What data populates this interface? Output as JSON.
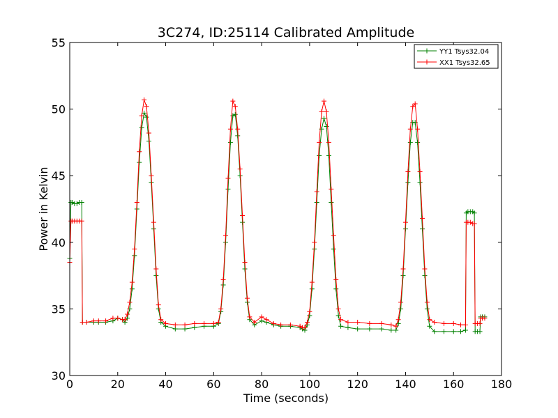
{
  "chart_data": {
    "type": "line",
    "title": "3C274, ID:25114 Calibrated Amplitude",
    "xlabel": "Time (seconds)",
    "ylabel": "Power in Kelvin",
    "xlim": [
      0,
      180
    ],
    "ylim": [
      30,
      55
    ],
    "xticks": [
      "0",
      "20",
      "40",
      "60",
      "80",
      "100",
      "120",
      "140",
      "160",
      "180"
    ],
    "yticks": [
      "30",
      "35",
      "40",
      "45",
      "50",
      "55"
    ],
    "grid": false,
    "legend_position": "top-right",
    "series": [
      {
        "name": "YY1 Tsys32.04",
        "color": "#008000",
        "marker": "plus",
        "points": [
          [
            0.0,
            38.8
          ],
          [
            0.5,
            43.0
          ],
          [
            1,
            43.0
          ],
          [
            2,
            42.9
          ],
          [
            3,
            42.9
          ],
          [
            4,
            43.0
          ],
          [
            5,
            43.0
          ],
          [
            5.3,
            34.0
          ],
          [
            7,
            34.0
          ],
          [
            10,
            34.0
          ],
          [
            12,
            34.0
          ],
          [
            15,
            34.0
          ],
          [
            18,
            34.1
          ],
          [
            20,
            34.3
          ],
          [
            22,
            34.2
          ],
          [
            23,
            34.0
          ],
          [
            24,
            34.3
          ],
          [
            25,
            35.0
          ],
          [
            26,
            36.5
          ],
          [
            27,
            39.0
          ],
          [
            28,
            42.5
          ],
          [
            29,
            46.0
          ],
          [
            30,
            48.6
          ],
          [
            31,
            49.7
          ],
          [
            32,
            49.4
          ],
          [
            33,
            47.6
          ],
          [
            34,
            44.5
          ],
          [
            35,
            41.0
          ],
          [
            36,
            37.5
          ],
          [
            37,
            35.0
          ],
          [
            38,
            34.0
          ],
          [
            40,
            33.7
          ],
          [
            44,
            33.5
          ],
          [
            48,
            33.5
          ],
          [
            52,
            33.6
          ],
          [
            56,
            33.7
          ],
          [
            60,
            33.7
          ],
          [
            62,
            33.9
          ],
          [
            63,
            34.8
          ],
          [
            64,
            36.8
          ],
          [
            65,
            40.0
          ],
          [
            66,
            44.0
          ],
          [
            67,
            47.5
          ],
          [
            68,
            49.5
          ],
          [
            69,
            49.6
          ],
          [
            70,
            48.0
          ],
          [
            71,
            45.0
          ],
          [
            72,
            41.5
          ],
          [
            73,
            38.0
          ],
          [
            74,
            35.5
          ],
          [
            75,
            34.2
          ],
          [
            77,
            33.8
          ],
          [
            80,
            34.1
          ],
          [
            82,
            34.0
          ],
          [
            85,
            33.8
          ],
          [
            88,
            33.7
          ],
          [
            92,
            33.7
          ],
          [
            96,
            33.6
          ],
          [
            97,
            33.5
          ],
          [
            98,
            33.4
          ],
          [
            99,
            33.8
          ],
          [
            100,
            34.5
          ],
          [
            101,
            36.5
          ],
          [
            102,
            39.5
          ],
          [
            103,
            43.0
          ],
          [
            104,
            46.5
          ],
          [
            105,
            48.5
          ],
          [
            106,
            49.3
          ],
          [
            107,
            48.7
          ],
          [
            108,
            46.5
          ],
          [
            109,
            43.0
          ],
          [
            110,
            39.5
          ],
          [
            111,
            36.5
          ],
          [
            112,
            34.5
          ],
          [
            113,
            33.7
          ],
          [
            116,
            33.6
          ],
          [
            120,
            33.5
          ],
          [
            125,
            33.5
          ],
          [
            130,
            33.5
          ],
          [
            134,
            33.4
          ],
          [
            136,
            33.4
          ],
          [
            137,
            33.9
          ],
          [
            138,
            35.0
          ],
          [
            139,
            37.5
          ],
          [
            140,
            41.0
          ],
          [
            141,
            44.5
          ],
          [
            142,
            47.5
          ],
          [
            143,
            49.0
          ],
          [
            144,
            49.0
          ],
          [
            145,
            47.5
          ],
          [
            146,
            44.5
          ],
          [
            147,
            41.0
          ],
          [
            148,
            37.5
          ],
          [
            149,
            35.0
          ],
          [
            150,
            33.7
          ],
          [
            152,
            33.3
          ],
          [
            156,
            33.3
          ],
          [
            160,
            33.3
          ],
          [
            163,
            33.3
          ],
          [
            165,
            33.4
          ],
          [
            165.3,
            42.2
          ],
          [
            166,
            42.3
          ],
          [
            167,
            42.3
          ],
          [
            168,
            42.3
          ],
          [
            168.7,
            42.2
          ],
          [
            169,
            33.3
          ],
          [
            170,
            33.3
          ],
          [
            171,
            33.3
          ],
          [
            171.3,
            34.4
          ],
          [
            172,
            34.4
          ],
          [
            173,
            34.4
          ]
        ]
      },
      {
        "name": "XX1 Tsys32.65",
        "color": "#ff0000",
        "marker": "plus",
        "points": [
          [
            0.0,
            38.5
          ],
          [
            0.5,
            41.6
          ],
          [
            1,
            41.6
          ],
          [
            2,
            41.6
          ],
          [
            3,
            41.6
          ],
          [
            4,
            41.6
          ],
          [
            5,
            41.6
          ],
          [
            5.3,
            34.0
          ],
          [
            7,
            34.0
          ],
          [
            10,
            34.1
          ],
          [
            12,
            34.1
          ],
          [
            15,
            34.1
          ],
          [
            18,
            34.3
          ],
          [
            20,
            34.3
          ],
          [
            22,
            34.2
          ],
          [
            23,
            34.2
          ],
          [
            24,
            34.6
          ],
          [
            25,
            35.5
          ],
          [
            26,
            37.0
          ],
          [
            27,
            39.5
          ],
          [
            28,
            43.0
          ],
          [
            29,
            46.8
          ],
          [
            30,
            49.5
          ],
          [
            31,
            50.7
          ],
          [
            32,
            50.2
          ],
          [
            33,
            48.2
          ],
          [
            34,
            45.0
          ],
          [
            35,
            41.5
          ],
          [
            36,
            38.0
          ],
          [
            37,
            35.3
          ],
          [
            38,
            34.2
          ],
          [
            40,
            33.9
          ],
          [
            44,
            33.8
          ],
          [
            48,
            33.8
          ],
          [
            52,
            33.9
          ],
          [
            56,
            33.9
          ],
          [
            60,
            33.9
          ],
          [
            62,
            34.0
          ],
          [
            63,
            35.0
          ],
          [
            64,
            37.2
          ],
          [
            65,
            40.5
          ],
          [
            66,
            44.8
          ],
          [
            67,
            48.5
          ],
          [
            68,
            50.6
          ],
          [
            69,
            50.2
          ],
          [
            70,
            48.5
          ],
          [
            71,
            45.5
          ],
          [
            72,
            42.0
          ],
          [
            73,
            38.5
          ],
          [
            74,
            35.8
          ],
          [
            75,
            34.4
          ],
          [
            77,
            34.0
          ],
          [
            80,
            34.4
          ],
          [
            82,
            34.2
          ],
          [
            85,
            33.9
          ],
          [
            88,
            33.8
          ],
          [
            92,
            33.8
          ],
          [
            96,
            33.7
          ],
          [
            97,
            33.6
          ],
          [
            98,
            33.6
          ],
          [
            99,
            34.0
          ],
          [
            100,
            34.8
          ],
          [
            101,
            37.0
          ],
          [
            102,
            40.0
          ],
          [
            103,
            43.8
          ],
          [
            104,
            47.5
          ],
          [
            105,
            49.8
          ],
          [
            106,
            50.6
          ],
          [
            107,
            49.8
          ],
          [
            108,
            47.5
          ],
          [
            109,
            44.0
          ],
          [
            110,
            40.5
          ],
          [
            111,
            37.2
          ],
          [
            112,
            35.0
          ],
          [
            113,
            34.2
          ],
          [
            116,
            34.0
          ],
          [
            120,
            34.0
          ],
          [
            125,
            33.9
          ],
          [
            130,
            33.9
          ],
          [
            134,
            33.8
          ],
          [
            136,
            33.7
          ],
          [
            137,
            34.2
          ],
          [
            138,
            35.5
          ],
          [
            139,
            38.0
          ],
          [
            140,
            41.5
          ],
          [
            141,
            45.3
          ],
          [
            142,
            48.5
          ],
          [
            143,
            50.2
          ],
          [
            144,
            50.4
          ],
          [
            145,
            48.5
          ],
          [
            146,
            45.3
          ],
          [
            147,
            41.8
          ],
          [
            148,
            38.0
          ],
          [
            149,
            35.5
          ],
          [
            150,
            34.2
          ],
          [
            152,
            34.0
          ],
          [
            156,
            33.9
          ],
          [
            160,
            33.9
          ],
          [
            163,
            33.8
          ],
          [
            165,
            33.8
          ],
          [
            165.3,
            41.5
          ],
          [
            166,
            41.5
          ],
          [
            167,
            41.5
          ],
          [
            168,
            41.4
          ],
          [
            168.7,
            41.4
          ],
          [
            169,
            33.9
          ],
          [
            170,
            33.9
          ],
          [
            171,
            33.9
          ],
          [
            171.3,
            34.3
          ],
          [
            172,
            34.3
          ],
          [
            173,
            34.3
          ]
        ]
      }
    ]
  }
}
